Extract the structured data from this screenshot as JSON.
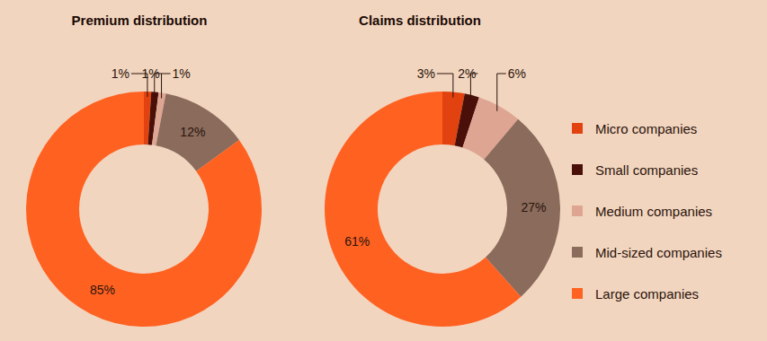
{
  "chart_data": [
    {
      "type": "pie",
      "title": "Premium distribution",
      "categories": [
        "Micro companies",
        "Small companies",
        "Medium companies",
        "Mid-sized companies",
        "Large companies"
      ],
      "values": [
        1,
        1,
        1,
        12,
        85
      ],
      "value_labels": [
        "1%",
        "1%",
        "1%",
        "12%",
        "85%"
      ],
      "colors": [
        "#e2420f",
        "#4a0f08",
        "#dea592",
        "#8a6b5c",
        "#ff6121"
      ],
      "data_labels": true,
      "legend": "right"
    },
    {
      "type": "pie",
      "title": "Claims distribution",
      "categories": [
        "Micro companies",
        "Small companies",
        "Medium companies",
        "Mid-sized companies",
        "Large companies"
      ],
      "values": [
        3,
        2,
        6,
        27,
        61
      ],
      "value_labels": [
        "3%",
        "2%",
        "6%",
        "27%",
        "61%"
      ],
      "colors": [
        "#e2420f",
        "#4a0f08",
        "#dea592",
        "#8a6b5c",
        "#ff6121"
      ],
      "data_labels": true,
      "legend": "right"
    }
  ]
}
